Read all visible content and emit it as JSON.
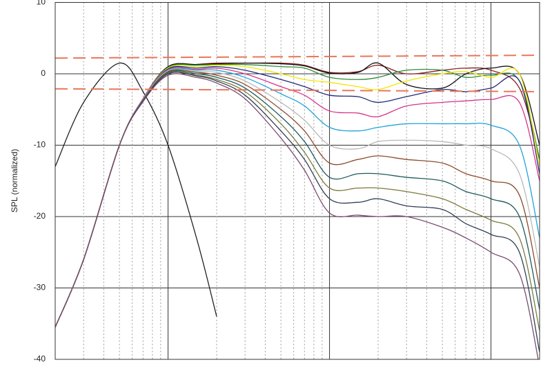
{
  "chart_data": {
    "type": "line",
    "y_label": "SPL (normalized)",
    "log_x": true,
    "grid": true,
    "xlim": [
      2,
      2000
    ],
    "ylim": [
      -40,
      10
    ],
    "yticks": [
      -40,
      -30,
      -20,
      -10,
      0,
      10
    ],
    "xticks": [
      3,
      4,
      5,
      6,
      7,
      8,
      9,
      10,
      20,
      30,
      40,
      50,
      60,
      70,
      80,
      90,
      100,
      200,
      300,
      400,
      500,
      600,
      700,
      800,
      900,
      1000
    ],
    "x": [
      2,
      3,
      5,
      7,
      10,
      15,
      20,
      30,
      50,
      70,
      100,
      150,
      200,
      300,
      500,
      700,
      1000,
      1500,
      2000
    ],
    "reference_lines": [
      {
        "color": "#e8765a",
        "values": [
          2.2,
          2.6
        ]
      },
      {
        "color": "#e8765a",
        "values": [
          -2.1,
          -2.5
        ]
      }
    ],
    "series": [
      {
        "color": "#222222",
        "values": [
          -13,
          -4,
          1.5,
          -2.5,
          -10,
          -23,
          -34,
          null,
          null,
          null,
          null,
          null,
          null,
          null,
          null,
          null,
          null,
          null,
          null
        ]
      },
      {
        "color": "#8b1a1a",
        "values": [
          -35.5,
          -26,
          -10,
          -3.5,
          1.0,
          1.3,
          1.5,
          1.5,
          1.5,
          1.2,
          0.2,
          0.3,
          1.2,
          0,
          0.5,
          0.8,
          0.5,
          -2,
          -12
        ]
      },
      {
        "color": "#111111",
        "values": [
          -35.5,
          -26,
          -10,
          -3.5,
          1.0,
          1.3,
          1.4,
          1.5,
          1.4,
          1.1,
          0.1,
          0.2,
          1.5,
          -1.5,
          -2,
          0,
          0.8,
          0,
          -10
        ]
      },
      {
        "color": "#2e8b3a",
        "values": [
          -35.5,
          -26,
          -10,
          -3.5,
          0.9,
          1.2,
          1.3,
          1.3,
          1.0,
          0.8,
          -0.5,
          -0.8,
          -0.5,
          0.5,
          0.5,
          -0.5,
          -0.2,
          -1,
          -12
        ]
      },
      {
        "color": "#f2e600",
        "values": [
          -35.5,
          -26,
          -10,
          -3.5,
          0.8,
          1.0,
          1.2,
          1.0,
          0,
          -0.8,
          -1.2,
          -1.8,
          -2.2,
          -1,
          0,
          0.3,
          -0.5,
          0,
          -13
        ]
      },
      {
        "color": "#1f2a7a",
        "values": [
          -35.5,
          -26,
          -10,
          -3.5,
          0.7,
          0.8,
          1.0,
          0.5,
          -0.8,
          -1.8,
          -3,
          -3.2,
          -4,
          -3.2,
          -2.2,
          -2.5,
          -2,
          -1,
          -14
        ]
      },
      {
        "color": "#d6338a",
        "values": [
          -35.5,
          -26,
          -10,
          -3.5,
          0.6,
          0.6,
          0.8,
          0,
          -1.8,
          -3,
          -5.2,
          -5.5,
          -6,
          -4.5,
          -4,
          -3.8,
          -3.6,
          -4,
          -15
        ]
      },
      {
        "color": "#1fa3d8",
        "values": [
          -35.5,
          -26,
          -10,
          -3.6,
          0.5,
          0.5,
          0.5,
          -0.5,
          -2.8,
          -4.5,
          -7.5,
          -8,
          -7.5,
          -7,
          -7,
          -7,
          -7.2,
          -10,
          -23
        ]
      },
      {
        "color": "#b8b8b8",
        "values": [
          -35.5,
          -26,
          -10,
          -3.6,
          0.4,
          0.3,
          0.2,
          -1,
          -4,
          -6.5,
          -10,
          -10.5,
          -9.5,
          -9.3,
          -9.5,
          -10,
          -10.5,
          -14,
          -27
        ]
      },
      {
        "color": "#8b4a2b",
        "values": [
          -35.5,
          -26,
          -10,
          -3.7,
          0.3,
          0.2,
          -0.2,
          -1.5,
          -5,
          -8,
          -12.5,
          -12,
          -11.5,
          -12,
          -12.5,
          -14,
          -15,
          -17,
          -30
        ]
      },
      {
        "color": "#1d5a5a",
        "values": [
          -35.5,
          -26,
          -10,
          -3.7,
          0.2,
          0,
          -0.5,
          -2,
          -6,
          -9.5,
          -14.5,
          -14,
          -14,
          -14.5,
          -15,
          -16.5,
          -17.5,
          -20,
          -33
        ]
      },
      {
        "color": "#7a7a3a",
        "values": [
          -35.5,
          -26,
          -10,
          -3.8,
          0.1,
          -0.2,
          -0.8,
          -2.5,
          -7,
          -11,
          -16,
          -16,
          -16,
          -16.5,
          -17.5,
          -19,
          -20.5,
          -23,
          -36
        ]
      },
      {
        "color": "#2f3e55",
        "values": [
          -35.5,
          -26,
          -10,
          -3.8,
          0,
          -0.3,
          -1,
          -3,
          -8,
          -12,
          -17.5,
          -18,
          -17.5,
          -18.5,
          -19,
          -21,
          -22.5,
          -25,
          -39
        ]
      },
      {
        "color": "#7a4a6e",
        "values": [
          -35.5,
          -26,
          -10,
          -3.9,
          -0.2,
          -0.5,
          -1.3,
          -3.5,
          -9,
          -13.5,
          -19.5,
          -19.8,
          -20,
          -20,
          -21.5,
          -23,
          -25,
          -28,
          -41
        ]
      }
    ]
  }
}
